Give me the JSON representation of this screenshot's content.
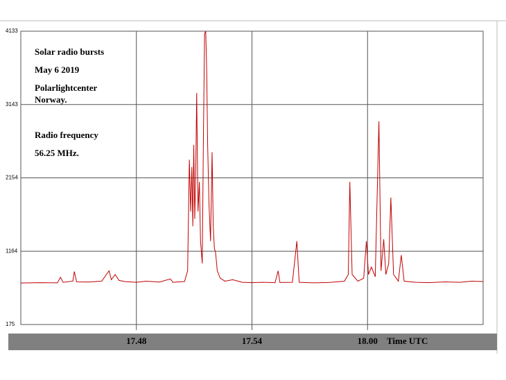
{
  "chart_data": {
    "type": "line",
    "annotations": [
      "Solar radio bursts",
      "May 6  2019",
      "Polarlightcenter",
      "Norway.",
      "Radio frequency",
      "56.25 MHz."
    ],
    "xlabel": "Time UTC",
    "color": "#c00000",
    "grid": true,
    "xlim": [
      1062,
      1086
    ],
    "ylim": [
      175,
      4133
    ],
    "yticks": [
      175,
      1164,
      2154,
      3143,
      4133
    ],
    "xticks": [
      {
        "value": 1068,
        "label": "17.48"
      },
      {
        "value": 1074,
        "label": "17.54"
      },
      {
        "value": 1080,
        "label": "18.00"
      }
    ],
    "x": [
      1062.0,
      1063.0,
      1063.9,
      1064.06,
      1064.2,
      1064.7,
      1064.78,
      1064.9,
      1065.5,
      1066.2,
      1066.58,
      1066.7,
      1066.9,
      1067.1,
      1067.4,
      1068.0,
      1068.5,
      1069.2,
      1069.76,
      1069.9,
      1070.5,
      1070.66,
      1070.75,
      1070.82,
      1070.88,
      1070.93,
      1070.98,
      1071.03,
      1071.08,
      1071.13,
      1071.2,
      1071.27,
      1071.33,
      1071.42,
      1071.48,
      1071.54,
      1071.6,
      1071.65,
      1071.7,
      1071.77,
      1071.85,
      1071.93,
      1071.99,
      1072.05,
      1072.11,
      1072.2,
      1072.35,
      1072.6,
      1073.0,
      1073.5,
      1074.0,
      1074.5,
      1075.2,
      1075.36,
      1075.45,
      1076.1,
      1076.33,
      1076.45,
      1077.2,
      1078.0,
      1078.8,
      1079.0,
      1079.08,
      1079.2,
      1079.5,
      1079.8,
      1079.94,
      1080.05,
      1080.2,
      1080.4,
      1080.59,
      1080.7,
      1080.84,
      1080.95,
      1081.1,
      1081.21,
      1081.35,
      1081.6,
      1081.75,
      1081.9,
      1082.5,
      1083.2,
      1084.0,
      1084.8,
      1085.4,
      1086.0
    ],
    "values": [
      735,
      740,
      738,
      812,
      745,
      760,
      890,
      750,
      748,
      760,
      900,
      780,
      850,
      770,
      755,
      745,
      760,
      748,
      790,
      745,
      755,
      900,
      2400,
      1700,
      2300,
      1500,
      2600,
      1600,
      2200,
      3300,
      1700,
      2100,
      1300,
      1000,
      2700,
      4100,
      4133,
      3600,
      2600,
      1800,
      1300,
      2500,
      1500,
      1200,
      1150,
      900,
      800,
      760,
      780,
      745,
      740,
      745,
      740,
      900,
      742,
      745,
      1300,
      745,
      738,
      742,
      760,
      850,
      2100,
      850,
      760,
      800,
      1300,
      850,
      950,
      820,
      2917,
      900,
      1326,
      850,
      1000,
      1888,
      850,
      760,
      1111,
      760,
      745,
      740,
      750,
      745,
      760,
      755
    ]
  }
}
